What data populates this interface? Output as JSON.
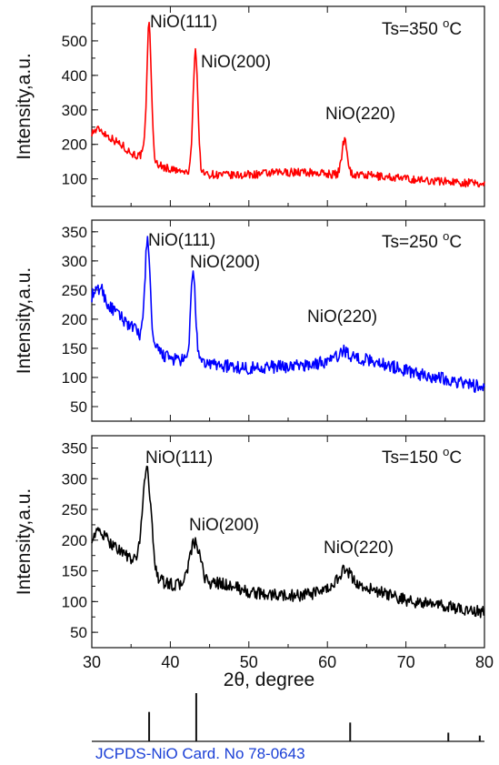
{
  "chart_data": {
    "xlabel": "2θ, degree",
    "xlim": [
      30,
      80
    ],
    "xticks": [
      30,
      40,
      50,
      60,
      70,
      80
    ],
    "panels": [
      {
        "id": "ts350",
        "type": "line",
        "series_name": "Ts=350 °C",
        "label_main": "Ts=350 ",
        "label_deg": "o",
        "label_unit": "C",
        "color": "#ff0000",
        "ylabel": "Intensity,a.u.",
        "ylim": [
          20,
          600
        ],
        "yticks": [
          100,
          200,
          300,
          400,
          500
        ],
        "baseline": [
          [
            30,
            235
          ],
          [
            31,
            245
          ],
          [
            32,
            225
          ],
          [
            33,
            210
          ],
          [
            34,
            195
          ],
          [
            35,
            175
          ],
          [
            36,
            165
          ],
          [
            36.8,
            180
          ],
          [
            38,
            150
          ],
          [
            39,
            135
          ],
          [
            40,
            128
          ],
          [
            41,
            122
          ],
          [
            42,
            118
          ],
          [
            44,
            115
          ],
          [
            46,
            112
          ],
          [
            48,
            110
          ],
          [
            50,
            112
          ],
          [
            52,
            115
          ],
          [
            54,
            118
          ],
          [
            56,
            120
          ],
          [
            58,
            118
          ],
          [
            60,
            115
          ],
          [
            61.5,
            112
          ],
          [
            63,
            112
          ],
          [
            65,
            110
          ],
          [
            68,
            105
          ],
          [
            70,
            100
          ],
          [
            73,
            95
          ],
          [
            76,
            92
          ],
          [
            78,
            88
          ],
          [
            80,
            85
          ]
        ],
        "peaks": [
          {
            "label": "NiO(111)",
            "x": 37.3,
            "intensity": 550,
            "width": 0.28
          },
          {
            "label": "NiO(200)",
            "x": 43.2,
            "intensity": 475,
            "width": 0.3
          },
          {
            "label": "NiO(220)",
            "x": 62.2,
            "intensity": 215,
            "width": 0.35
          }
        ],
        "noise": 12
      },
      {
        "id": "ts250",
        "type": "line",
        "series_name": "Ts=250 °C",
        "label_main": "Ts=250 ",
        "label_deg": "o",
        "label_unit": "C",
        "color": "#0000ff",
        "ylabel": "Intensity,a.u.",
        "ylim": [
          25,
          370
        ],
        "yticks": [
          50,
          100,
          150,
          200,
          250,
          300,
          350
        ],
        "baseline": [
          [
            30,
            240
          ],
          [
            31.2,
            255
          ],
          [
            32,
            225
          ],
          [
            33,
            212
          ],
          [
            34,
            200
          ],
          [
            35,
            188
          ],
          [
            36,
            175
          ],
          [
            38,
            150
          ],
          [
            39,
            140
          ],
          [
            40,
            132
          ],
          [
            42,
            128
          ],
          [
            44,
            125
          ],
          [
            46,
            122
          ],
          [
            48,
            118
          ],
          [
            50,
            116
          ],
          [
            52,
            118
          ],
          [
            54,
            118
          ],
          [
            56,
            120
          ],
          [
            58,
            122
          ],
          [
            60,
            128
          ],
          [
            62,
            138
          ],
          [
            64,
            132
          ],
          [
            66,
            128
          ],
          [
            68,
            120
          ],
          [
            70,
            112
          ],
          [
            72,
            105
          ],
          [
            75,
            98
          ],
          [
            78,
            88
          ],
          [
            80,
            82
          ]
        ],
        "peaks": [
          {
            "label": "NiO(111)",
            "x": 37.1,
            "intensity": 340,
            "width": 0.32
          },
          {
            "label": "NiO(200)",
            "x": 42.9,
            "intensity": 285,
            "width": 0.3
          },
          {
            "label": "NiO(220)",
            "x": 62.2,
            "intensity": 145,
            "width": 0.6
          }
        ],
        "noise": 11
      },
      {
        "id": "ts150",
        "type": "line",
        "series_name": "Ts=150 °C",
        "label_main": "Ts=150 ",
        "label_deg": "o",
        "label_unit": "C",
        "color": "#000000",
        "ylabel": "Intensity,a.u.",
        "ylim": [
          25,
          370
        ],
        "yticks": [
          50,
          100,
          150,
          200,
          250,
          300,
          350
        ],
        "baseline": [
          [
            30,
            205
          ],
          [
            31,
            215
          ],
          [
            32,
            200
          ],
          [
            33,
            190
          ],
          [
            34,
            180
          ],
          [
            35,
            168
          ],
          [
            36,
            160
          ],
          [
            38,
            140
          ],
          [
            39,
            132
          ],
          [
            40,
            128
          ],
          [
            42,
            125
          ],
          [
            44,
            128
          ],
          [
            46,
            130
          ],
          [
            48,
            125
          ],
          [
            50,
            115
          ],
          [
            52,
            112
          ],
          [
            54,
            110
          ],
          [
            56,
            110
          ],
          [
            58,
            112
          ],
          [
            60,
            118
          ],
          [
            62,
            128
          ],
          [
            64,
            125
          ],
          [
            66,
            118
          ],
          [
            68,
            110
          ],
          [
            70,
            102
          ],
          [
            72,
            98
          ],
          [
            75,
            92
          ],
          [
            78,
            86
          ],
          [
            80,
            82
          ]
        ],
        "peaks": [
          {
            "label": "NiO(111)",
            "x": 37.0,
            "intensity": 315,
            "width": 0.55
          },
          {
            "label": "NiO(200)",
            "x": 43.1,
            "intensity": 195,
            "width": 0.7
          },
          {
            "label": "NiO(220)",
            "x": 62.2,
            "intensity": 150,
            "width": 0.9
          }
        ],
        "noise": 10
      }
    ],
    "reference": {
      "type": "bar",
      "label": "JCPDS-NiO Card. No 78-0643",
      "label_color": "#1a3fd6",
      "lines": [
        {
          "x": 37.3,
          "relative_intensity": 0.61
        },
        {
          "x": 43.3,
          "relative_intensity": 1.0
        },
        {
          "x": 62.9,
          "relative_intensity": 0.39
        },
        {
          "x": 75.4,
          "relative_intensity": 0.18
        },
        {
          "x": 79.4,
          "relative_intensity": 0.12
        }
      ]
    }
  }
}
